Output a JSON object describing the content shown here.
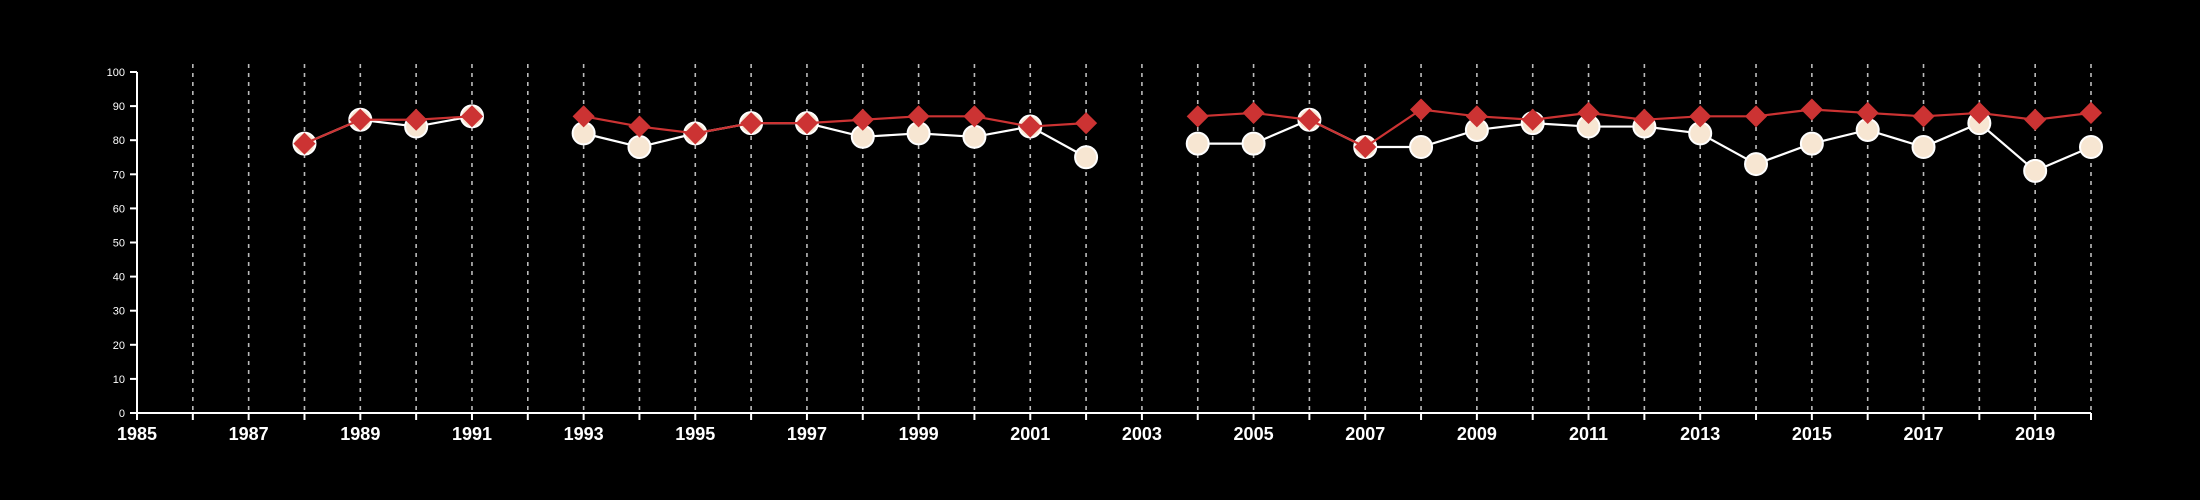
{
  "chart_data": {
    "type": "line",
    "title": "",
    "xlabel": "",
    "ylabel": "",
    "xlim": [
      1985,
      2020
    ],
    "ylim": [
      0,
      100
    ],
    "x_ticks": [
      "1985",
      "1987",
      "1989",
      "1991",
      "1993",
      "1995",
      "1997",
      "1999",
      "2001",
      "2003",
      "2005",
      "2007",
      "2009",
      "2011",
      "2013",
      "2015",
      "2017",
      "2019"
    ],
    "y_ticks": [
      "0",
      "10",
      "20",
      "30",
      "40",
      "50",
      "60",
      "70",
      "80",
      "90",
      "100"
    ],
    "grid": "vertical dashed lines at each year",
    "colors": {
      "background": "#000000",
      "axis": "#ffffff",
      "grid": "#bbbbbb"
    },
    "series": [
      {
        "marker": "circle",
        "color": "#ffffff",
        "fill": "#f7e6d2",
        "points": [
          [
            1988,
            79
          ],
          [
            1989,
            86
          ],
          [
            1990,
            84
          ],
          [
            1991,
            87
          ],
          null,
          [
            1993,
            82
          ],
          [
            1994,
            78
          ],
          [
            1995,
            82
          ],
          [
            1996,
            85
          ],
          [
            1997,
            85
          ],
          [
            1998,
            81
          ],
          [
            1999,
            82
          ],
          [
            2000,
            81
          ],
          [
            2001,
            84
          ],
          [
            2002,
            75
          ],
          null,
          [
            2004,
            79
          ],
          [
            2005,
            79
          ],
          [
            2006,
            86
          ],
          [
            2007,
            78
          ],
          [
            2008,
            78
          ],
          [
            2009,
            83
          ],
          [
            2010,
            85
          ],
          [
            2011,
            84
          ],
          [
            2012,
            84
          ],
          [
            2013,
            82
          ],
          [
            2014,
            73
          ],
          [
            2015,
            79
          ],
          [
            2016,
            83
          ],
          [
            2017,
            78
          ],
          [
            2018,
            85
          ],
          [
            2019,
            71
          ],
          [
            2020,
            78
          ]
        ]
      },
      {
        "marker": "diamond",
        "color": "#cc3333",
        "fill": "#cc3333",
        "points": [
          [
            1988,
            79
          ],
          [
            1989,
            86
          ],
          [
            1990,
            86
          ],
          [
            1991,
            87
          ],
          null,
          [
            1993,
            87
          ],
          [
            1994,
            84
          ],
          [
            1995,
            82
          ],
          [
            1996,
            85
          ],
          [
            1997,
            85
          ],
          [
            1998,
            86
          ],
          [
            1999,
            87
          ],
          [
            2000,
            87
          ],
          [
            2001,
            84
          ],
          [
            2002,
            85
          ],
          null,
          [
            2004,
            87
          ],
          [
            2005,
            88
          ],
          [
            2006,
            86
          ],
          [
            2007,
            78
          ],
          [
            2008,
            89
          ],
          [
            2009,
            87
          ],
          [
            2010,
            86
          ],
          [
            2011,
            88
          ],
          [
            2012,
            86
          ],
          [
            2013,
            87
          ],
          [
            2014,
            87
          ],
          [
            2015,
            89
          ],
          [
            2016,
            88
          ],
          [
            2017,
            87
          ],
          [
            2018,
            88
          ],
          [
            2019,
            86
          ],
          [
            2020,
            88
          ]
        ]
      }
    ]
  }
}
